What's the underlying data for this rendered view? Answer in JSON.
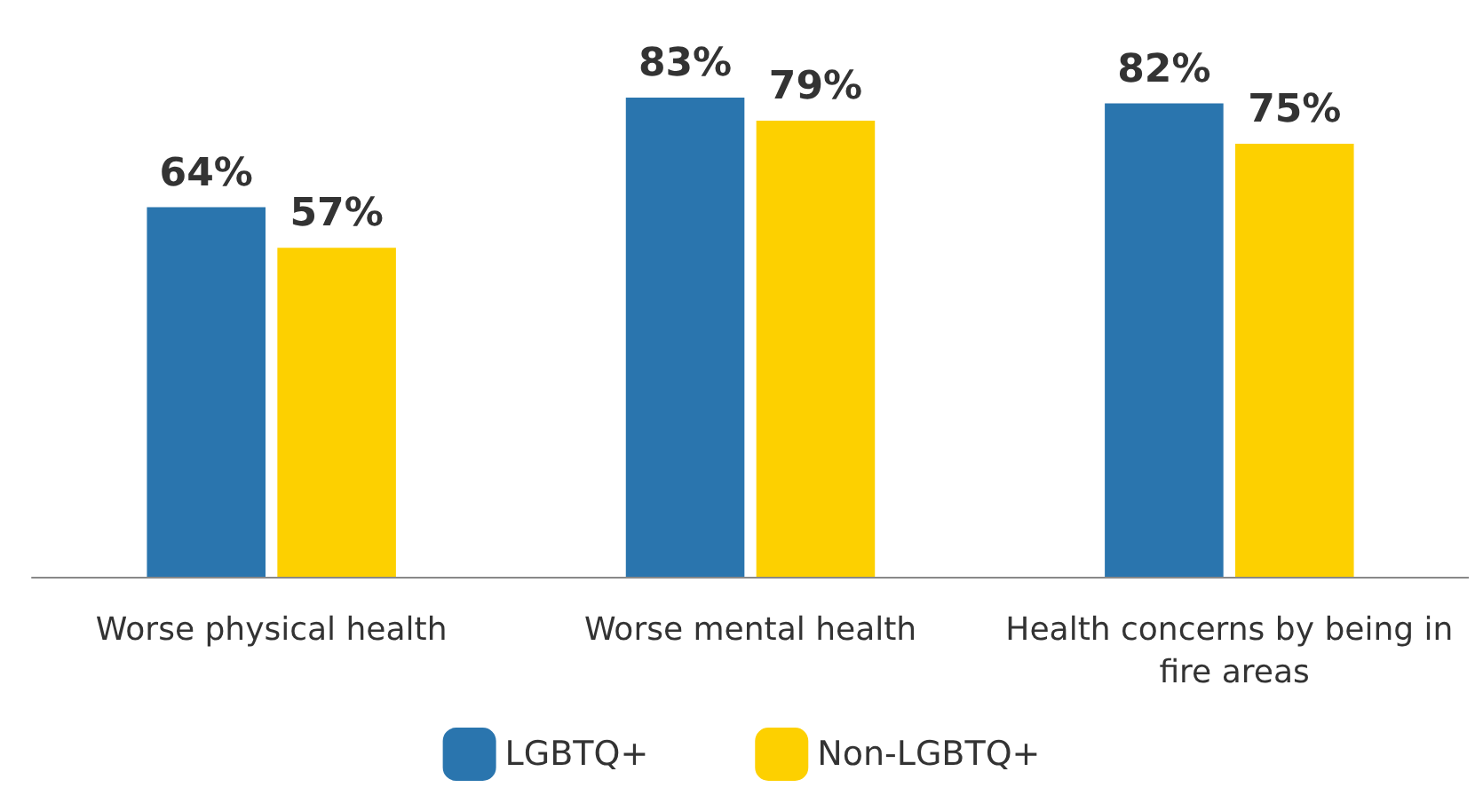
{
  "chart_data": {
    "type": "bar",
    "categories": [
      "Worse physical health",
      "Worse mental health",
      "Health concerns by being in fire areas"
    ],
    "series": [
      {
        "name": "LGBTQ+",
        "color": "#2a75ae",
        "values": [
          64,
          83,
          82
        ],
        "value_labels": [
          "64%",
          "83%",
          "82%"
        ]
      },
      {
        "name": "Non-LGBTQ+",
        "color": "#fdd000",
        "values": [
          57,
          79,
          75
        ],
        "value_labels": [
          "57%",
          "79%",
          "75%"
        ]
      }
    ],
    "legend": "bottom"
  }
}
